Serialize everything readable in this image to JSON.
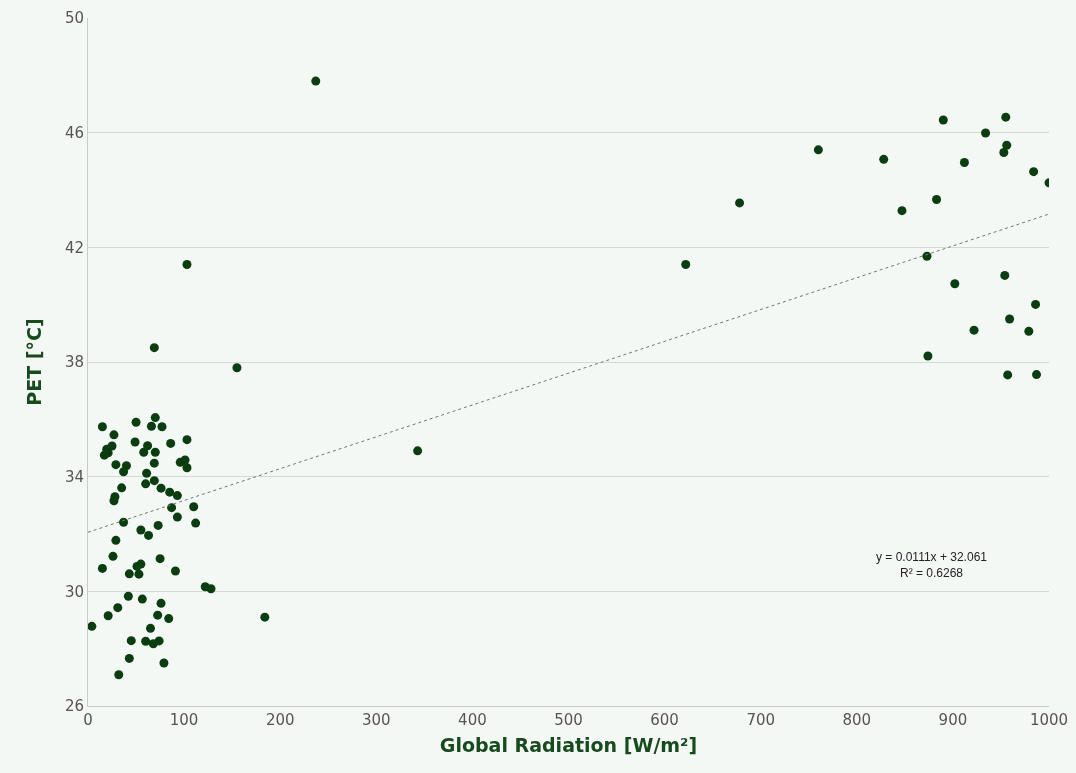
{
  "chart_data": {
    "type": "scatter",
    "xlabel": "Global Radiation [W/m²]",
    "ylabel": "PET [°C]",
    "xlim": [
      0,
      1000
    ],
    "xticks": [
      0,
      100,
      200,
      300,
      400,
      500,
      600,
      700,
      800,
      900,
      1000
    ],
    "ylim": [
      26,
      50
    ],
    "yticks": [
      26,
      30,
      34,
      38,
      42,
      46,
      50
    ],
    "grid": "y",
    "legend": false,
    "marker": "circle",
    "annotations": [
      "y = 0.0111x + 32.061",
      "R² = 0.6268"
    ],
    "series": [
      {
        "color": "#0b3d10",
        "x": [
          15,
          50,
          70,
          66,
          77,
          27,
          103,
          49,
          86,
          62,
          25,
          19.5,
          21,
          17,
          58,
          70,
          96,
          101,
          103,
          29,
          40,
          69,
          37,
          61,
          60,
          69,
          76,
          85,
          93,
          35,
          28,
          27,
          87,
          110,
          93,
          112,
          37,
          55,
          63,
          73,
          29,
          26,
          15,
          75,
          51,
          55,
          43,
          53,
          91,
          122,
          128,
          42,
          56.5,
          76,
          31,
          21,
          72.5,
          84,
          4,
          65,
          45,
          60,
          68,
          74,
          43,
          79,
          32,
          69,
          103,
          155,
          184,
          237,
          343,
          622,
          678,
          760,
          890,
          955,
          934,
          828,
          912,
          956,
          953,
          984,
          1000,
          883,
          847,
          873,
          954,
          902,
          986,
          959,
          922,
          979,
          874,
          957,
          987
        ],
        "values": [
          35.74,
          35.9,
          36.06,
          35.76,
          35.74,
          35.46,
          35.29,
          35.21,
          35.16,
          35.08,
          35.07,
          34.96,
          34.83,
          34.75,
          34.85,
          34.85,
          34.5,
          34.58,
          34.31,
          34.42,
          34.38,
          34.47,
          34.17,
          34.12,
          33.75,
          33.86,
          33.6,
          33.46,
          33.34,
          33.61,
          33.3,
          33.16,
          32.92,
          32.95,
          32.59,
          32.38,
          32.41,
          32.14,
          31.95,
          32.3,
          31.78,
          31.22,
          30.8,
          31.14,
          30.87,
          30.95,
          30.61,
          30.6,
          30.71,
          30.16,
          30.09,
          29.83,
          29.73,
          29.58,
          29.43,
          29.15,
          29.17,
          29.05,
          28.78,
          28.71,
          28.28,
          28.26,
          28.17,
          28.27,
          27.66,
          27.5,
          27.09,
          38.5,
          41.4,
          37.8,
          29.1,
          47.8,
          34.9,
          41.4,
          43.55,
          45.4,
          46.44,
          46.54,
          45.99,
          45.07,
          44.96,
          45.56,
          45.31,
          44.64,
          44.25,
          43.67,
          43.28,
          41.69,
          41.02,
          40.73,
          40.01,
          39.5,
          39.11,
          39.07,
          38.21,
          37.55,
          37.56
        ]
      },
      {
        "type": "line",
        "color": "#6b7b6d",
        "line_style": "dotted",
        "marker": "none",
        "x": [
          0,
          1000
        ],
        "values": [
          32.06,
          43.16
        ]
      }
    ]
  }
}
